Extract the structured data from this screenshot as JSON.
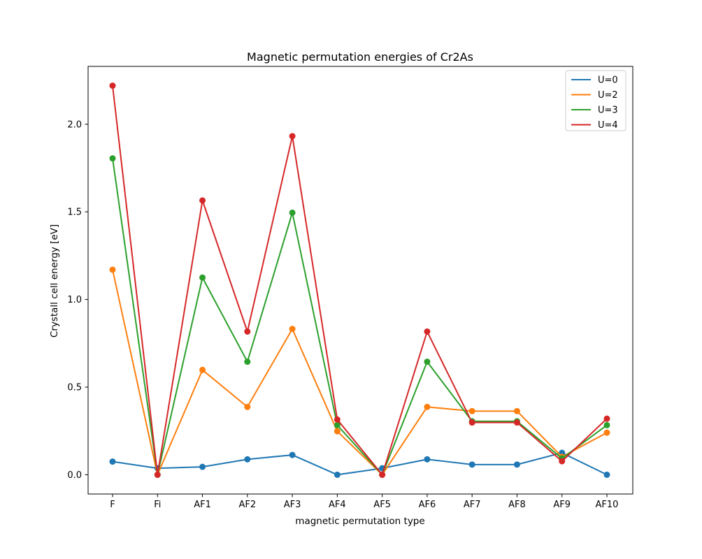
{
  "chart_data": {
    "type": "line",
    "title": "Magnetic permutation energies of Cr2As",
    "xlabel": "magnetic permutation type",
    "ylabel": "Crystall cell energy [eV]",
    "categories": [
      "F",
      "Fi",
      "AF1",
      "AF2",
      "AF3",
      "AF4",
      "AF5",
      "AF6",
      "AF7",
      "AF8",
      "AF9",
      "AF10"
    ],
    "ylim": [
      -0.11,
      2.33
    ],
    "yticks": [
      0.0,
      0.5,
      1.0,
      1.5,
      2.0
    ],
    "ytick_labels": [
      "0.0",
      "0.5",
      "1.0",
      "1.5",
      "2.0"
    ],
    "grid": false,
    "legend_position": "top-right",
    "series": [
      {
        "name": "U=0",
        "color": "#1f77b4",
        "values": [
          0.075,
          0.037,
          0.045,
          0.088,
          0.113,
          0.0,
          0.037,
          0.088,
          0.058,
          0.058,
          0.125,
          0.0
        ]
      },
      {
        "name": "U=2",
        "color": "#ff7f0e",
        "values": [
          1.17,
          0.0,
          0.598,
          0.387,
          0.832,
          0.248,
          0.0,
          0.387,
          0.363,
          0.363,
          0.102,
          0.24
        ]
      },
      {
        "name": "U=3",
        "color": "#2ca02c",
        "values": [
          1.805,
          0.0,
          1.125,
          0.645,
          1.495,
          0.283,
          0.0,
          0.645,
          0.305,
          0.305,
          0.093,
          0.283
        ]
      },
      {
        "name": "U=4",
        "color": "#d62728",
        "values": [
          2.22,
          0.0,
          1.565,
          0.817,
          1.932,
          0.315,
          0.0,
          0.817,
          0.298,
          0.298,
          0.077,
          0.32
        ]
      }
    ]
  }
}
